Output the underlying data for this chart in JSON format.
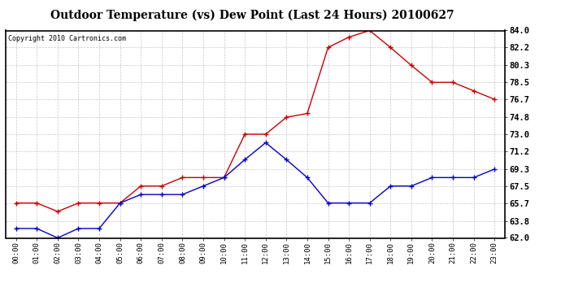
{
  "title": "Outdoor Temperature (vs) Dew Point (Last 24 Hours) 20100627",
  "copyright": "Copyright 2010 Cartronics.com",
  "hours": [
    "00:00",
    "01:00",
    "02:00",
    "03:00",
    "04:00",
    "05:00",
    "06:00",
    "07:00",
    "08:00",
    "09:00",
    "10:00",
    "11:00",
    "12:00",
    "13:00",
    "14:00",
    "15:00",
    "16:00",
    "17:00",
    "18:00",
    "19:00",
    "20:00",
    "21:00",
    "22:00",
    "23:00"
  ],
  "temp": [
    65.7,
    65.7,
    64.8,
    65.7,
    65.7,
    65.7,
    67.5,
    67.5,
    68.4,
    68.4,
    68.4,
    73.0,
    73.0,
    74.8,
    75.2,
    82.2,
    83.3,
    84.0,
    82.2,
    80.3,
    78.5,
    78.5,
    77.6,
    76.7
  ],
  "dew": [
    63.0,
    63.0,
    62.0,
    63.0,
    63.0,
    65.7,
    66.6,
    66.6,
    66.6,
    67.5,
    68.4,
    70.3,
    72.1,
    70.3,
    68.4,
    65.7,
    65.7,
    65.7,
    67.5,
    67.5,
    68.4,
    68.4,
    68.4,
    69.3
  ],
  "temp_color": "#cc0000",
  "dew_color": "#0000cc",
  "bg_color": "#ffffff",
  "plot_bg": "#ffffff",
  "grid_color": "#c8c8c8",
  "ylim": [
    62.0,
    84.0
  ],
  "yticks": [
    62.0,
    63.8,
    65.7,
    67.5,
    69.3,
    71.2,
    73.0,
    74.8,
    76.7,
    78.5,
    80.3,
    82.2,
    84.0
  ]
}
